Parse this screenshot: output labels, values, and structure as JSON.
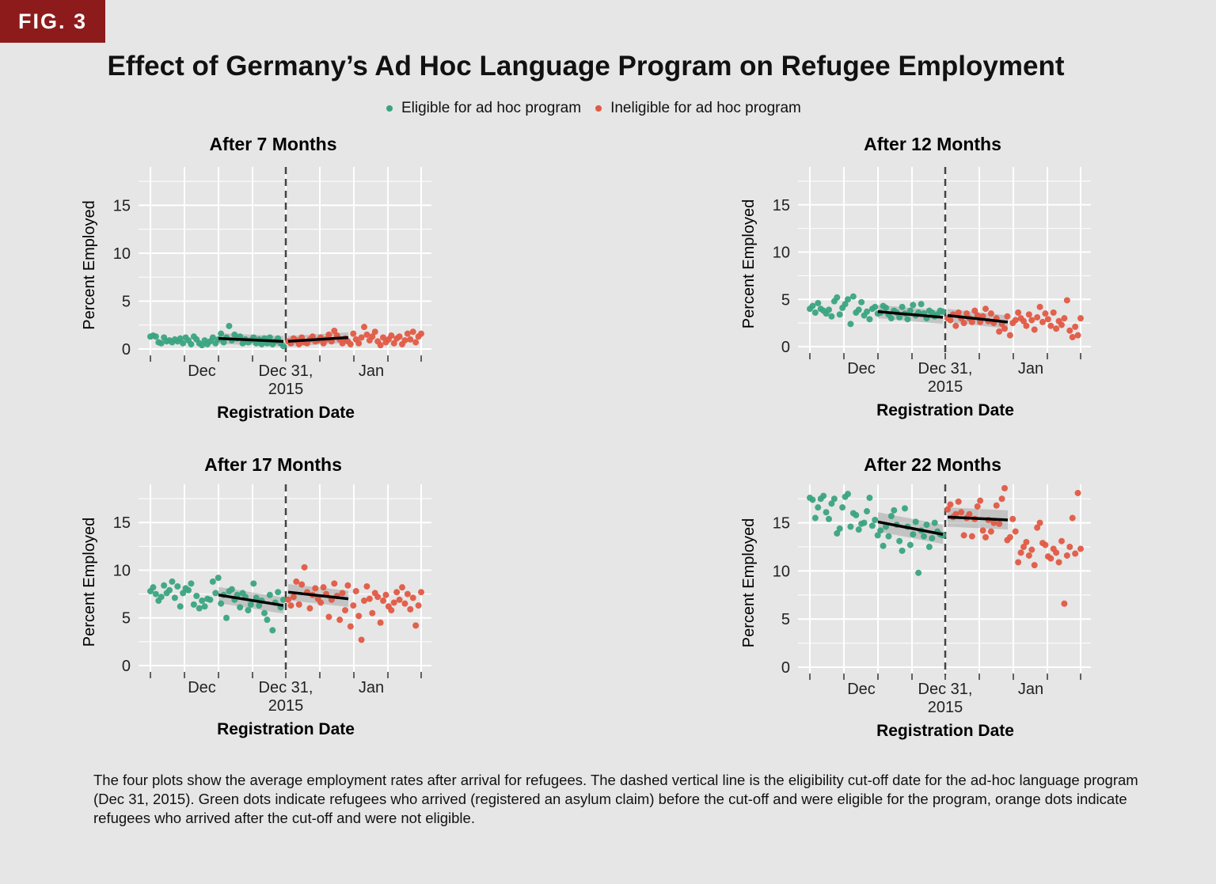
{
  "figure": {
    "badge": "FIG. 3",
    "title": "Effect of Germany’s Ad Hoc Language Program on Refugee Employment",
    "caption": "The four plots show the average employment rates after arrival for refugees. The dashed vertical line is the eligibility cut-off date for the ad-hoc language program (Dec 31, 2015). Green dots indicate refugees who arrived (registered an asylum claim) before the cut-off and were eligible for the program, orange dots indicate refugees who arrived after the cut-off and were not eligible."
  },
  "legend": {
    "items": [
      {
        "label": "Eligible for ad hoc program",
        "color": "#3aa47f"
      },
      {
        "label": "Ineligible for ad hoc program",
        "color": "#e05a44"
      }
    ]
  },
  "colors": {
    "eligible": "#3aa47f",
    "ineligible": "#e05a44",
    "background": "#e6e6e6",
    "badge": "#8e1b1b"
  },
  "chart_data": [
    {
      "type": "scatter",
      "title": "After 7 Months",
      "xlabel": "Registration Date",
      "ylabel": "Percent Employed",
      "x_ticks": [
        "Dec",
        "Dec 31,\n2015",
        "Jan"
      ],
      "y_ticks": [
        0,
        5,
        10,
        15
      ],
      "ylim": [
        0,
        19
      ],
      "cutoff": "2015-12-31",
      "grid": true,
      "eligible": [
        1.3,
        1.4,
        1.3,
        0.7,
        0.6,
        1.2,
        0.8,
        0.9,
        0.7,
        1.0,
        0.8,
        1.1,
        0.6,
        1.2,
        0.9,
        0.5,
        1.3,
        1.0,
        0.6,
        0.4,
        0.9,
        0.5,
        0.8,
        1.2,
        0.6,
        1.0,
        1.6,
        0.7,
        1.2,
        2.4,
        0.9,
        1.5,
        1.1,
        1.3,
        0.6,
        1.0,
        0.7,
        0.9,
        1.2,
        0.6,
        1.0,
        0.5,
        1.1,
        0.6,
        1.2,
        0.5,
        0.8,
        1.1,
        0.6,
        0.3
      ],
      "ineligible": [
        0.8,
        0.6,
        1.1,
        0.9,
        0.5,
        1.2,
        0.7,
        0.6,
        1.0,
        1.3,
        0.8,
        0.9,
        1.2,
        0.6,
        1.0,
        1.5,
        0.8,
        1.9,
        1.4,
        1.0,
        0.6,
        1.1,
        0.8,
        0.5,
        1.6,
        1.0,
        0.6,
        1.2,
        2.3,
        1.5,
        0.9,
        1.3,
        1.8,
        0.8,
        0.4,
        1.2,
        0.7,
        1.0,
        1.4,
        0.6,
        1.1,
        1.3,
        0.5,
        0.9,
        1.6,
        1.0,
        1.8,
        0.7,
        1.3,
        1.6
      ],
      "fit_eligible": [
        1.1,
        0.8
      ],
      "fit_ineligible": [
        0.8,
        1.2
      ]
    },
    {
      "type": "scatter",
      "title": "After 12 Months",
      "xlabel": "Registration Date",
      "ylabel": "Percent Employed",
      "x_ticks": [
        "Dec",
        "Dec 31,\n2015",
        "Jan"
      ],
      "y_ticks": [
        0,
        5,
        10,
        15
      ],
      "ylim": [
        0,
        19
      ],
      "cutoff": "2015-12-31",
      "grid": true,
      "eligible": [
        4.0,
        4.3,
        3.6,
        4.6,
        4.0,
        3.8,
        3.5,
        3.9,
        3.2,
        4.8,
        5.2,
        3.4,
        4.1,
        4.5,
        5.0,
        2.4,
        5.3,
        3.6,
        3.9,
        4.7,
        3.3,
        3.7,
        2.9,
        4.0,
        4.2,
        3.5,
        3.6,
        4.3,
        4.1,
        3.4,
        3.0,
        3.8,
        3.6,
        3.1,
        4.2,
        3.5,
        2.9,
        3.8,
        4.4,
        3.3,
        3.6,
        4.5,
        3.5,
        3.0,
        3.8,
        3.6,
        3.2,
        3.4,
        3.8,
        3.7
      ],
      "ineligible": [
        3.0,
        2.8,
        3.4,
        2.2,
        3.6,
        3.0,
        2.5,
        3.5,
        3.0,
        2.6,
        3.8,
        3.3,
        2.6,
        3.2,
        4.0,
        2.7,
        3.5,
        2.5,
        3.0,
        1.6,
        2.4,
        1.9,
        3.2,
        1.2,
        2.5,
        2.8,
        3.6,
        3.0,
        2.7,
        2.2,
        3.4,
        2.8,
        1.8,
        3.1,
        4.2,
        2.6,
        3.5,
        2.9,
        2.2,
        3.6,
        1.9,
        2.7,
        2.3,
        3.0,
        4.9,
        1.7,
        1.0,
        2.1,
        1.2,
        3.0
      ],
      "fit_eligible": [
        3.7,
        3.1
      ],
      "fit_ineligible": [
        3.3,
        2.6
      ]
    },
    {
      "type": "scatter",
      "title": "After 17 Months",
      "xlabel": "Registration Date",
      "ylabel": "Percent Employed",
      "x_ticks": [
        "Dec",
        "Dec 31,\n2015",
        "Jan"
      ],
      "y_ticks": [
        0,
        5,
        10,
        15
      ],
      "ylim": [
        0,
        19
      ],
      "cutoff": "2015-12-31",
      "grid": true,
      "eligible": [
        7.8,
        8.2,
        7.5,
        6.8,
        7.2,
        8.4,
        7.6,
        7.9,
        8.8,
        7.1,
        8.3,
        6.2,
        7.6,
        8.1,
        7.9,
        8.6,
        6.4,
        7.3,
        6.0,
        6.8,
        6.2,
        7.0,
        6.9,
        8.8,
        7.6,
        9.2,
        6.5,
        7.4,
        5.0,
        7.8,
        8.0,
        6.9,
        7.4,
        6.1,
        7.6,
        7.2,
        5.8,
        6.4,
        8.6,
        7.1,
        6.3,
        6.8,
        5.5,
        4.8,
        7.4,
        3.7,
        6.6,
        7.7,
        6.1,
        6.9
      ],
      "ineligible": [
        6.9,
        6.3,
        7.2,
        8.8,
        6.4,
        8.5,
        10.3,
        7.7,
        6.0,
        7.4,
        8.1,
        7.0,
        6.6,
        8.2,
        7.5,
        5.1,
        6.9,
        8.6,
        7.3,
        4.8,
        7.6,
        5.8,
        8.4,
        4.1,
        6.3,
        7.8,
        5.2,
        2.7,
        6.8,
        8.3,
        7.0,
        5.5,
        7.6,
        7.2,
        4.5,
        6.8,
        7.4,
        6.2,
        5.8,
        6.6,
        7.7,
        6.9,
        8.2,
        6.5,
        7.5,
        5.9,
        7.1,
        4.2,
        6.3,
        7.7
      ],
      "fit_eligible": [
        7.4,
        6.3
      ],
      "fit_ineligible": [
        7.7,
        7.0
      ]
    },
    {
      "type": "scatter",
      "title": "After 22 Months",
      "xlabel": "Registration Date",
      "ylabel": "Percent Employed",
      "x_ticks": [
        "Dec",
        "Dec 31,\n2015",
        "Jan"
      ],
      "y_ticks": [
        0,
        5,
        10,
        15
      ],
      "ylim": [
        0,
        19
      ],
      "cutoff": "2015-12-31",
      "grid": true,
      "eligible": [
        17.6,
        17.4,
        15.5,
        16.6,
        17.5,
        17.8,
        16.1,
        15.4,
        17.0,
        17.5,
        13.9,
        14.4,
        16.6,
        17.7,
        18.0,
        14.6,
        16.0,
        15.8,
        14.3,
        14.9,
        15.0,
        16.2,
        17.6,
        14.7,
        15.3,
        13.7,
        14.2,
        12.6,
        14.6,
        13.6,
        15.7,
        16.3,
        14.8,
        13.1,
        12.1,
        16.5,
        14.6,
        12.7,
        13.8,
        15.1,
        9.8,
        14.2,
        13.6,
        14.8,
        12.5,
        13.4,
        15.0,
        14.1,
        13.8,
        13.7
      ],
      "ineligible": [
        16.4,
        16.9,
        15.6,
        15.9,
        17.2,
        16.1,
        13.7,
        15.5,
        15.9,
        13.6,
        15.4,
        16.7,
        17.3,
        14.2,
        13.5,
        15.3,
        14.1,
        15.0,
        16.8,
        14.9,
        17.5,
        18.6,
        13.2,
        13.5,
        15.4,
        14.1,
        10.9,
        11.9,
        12.5,
        13.0,
        11.6,
        12.2,
        10.6,
        14.5,
        15.0,
        12.9,
        12.7,
        11.5,
        11.3,
        12.3,
        11.9,
        10.9,
        13.1,
        6.6,
        11.6,
        12.5,
        15.5,
        11.8,
        18.1,
        12.3
      ],
      "fit_eligible": [
        15.1,
        13.8
      ],
      "fit_ineligible": [
        15.6,
        15.3
      ]
    }
  ]
}
